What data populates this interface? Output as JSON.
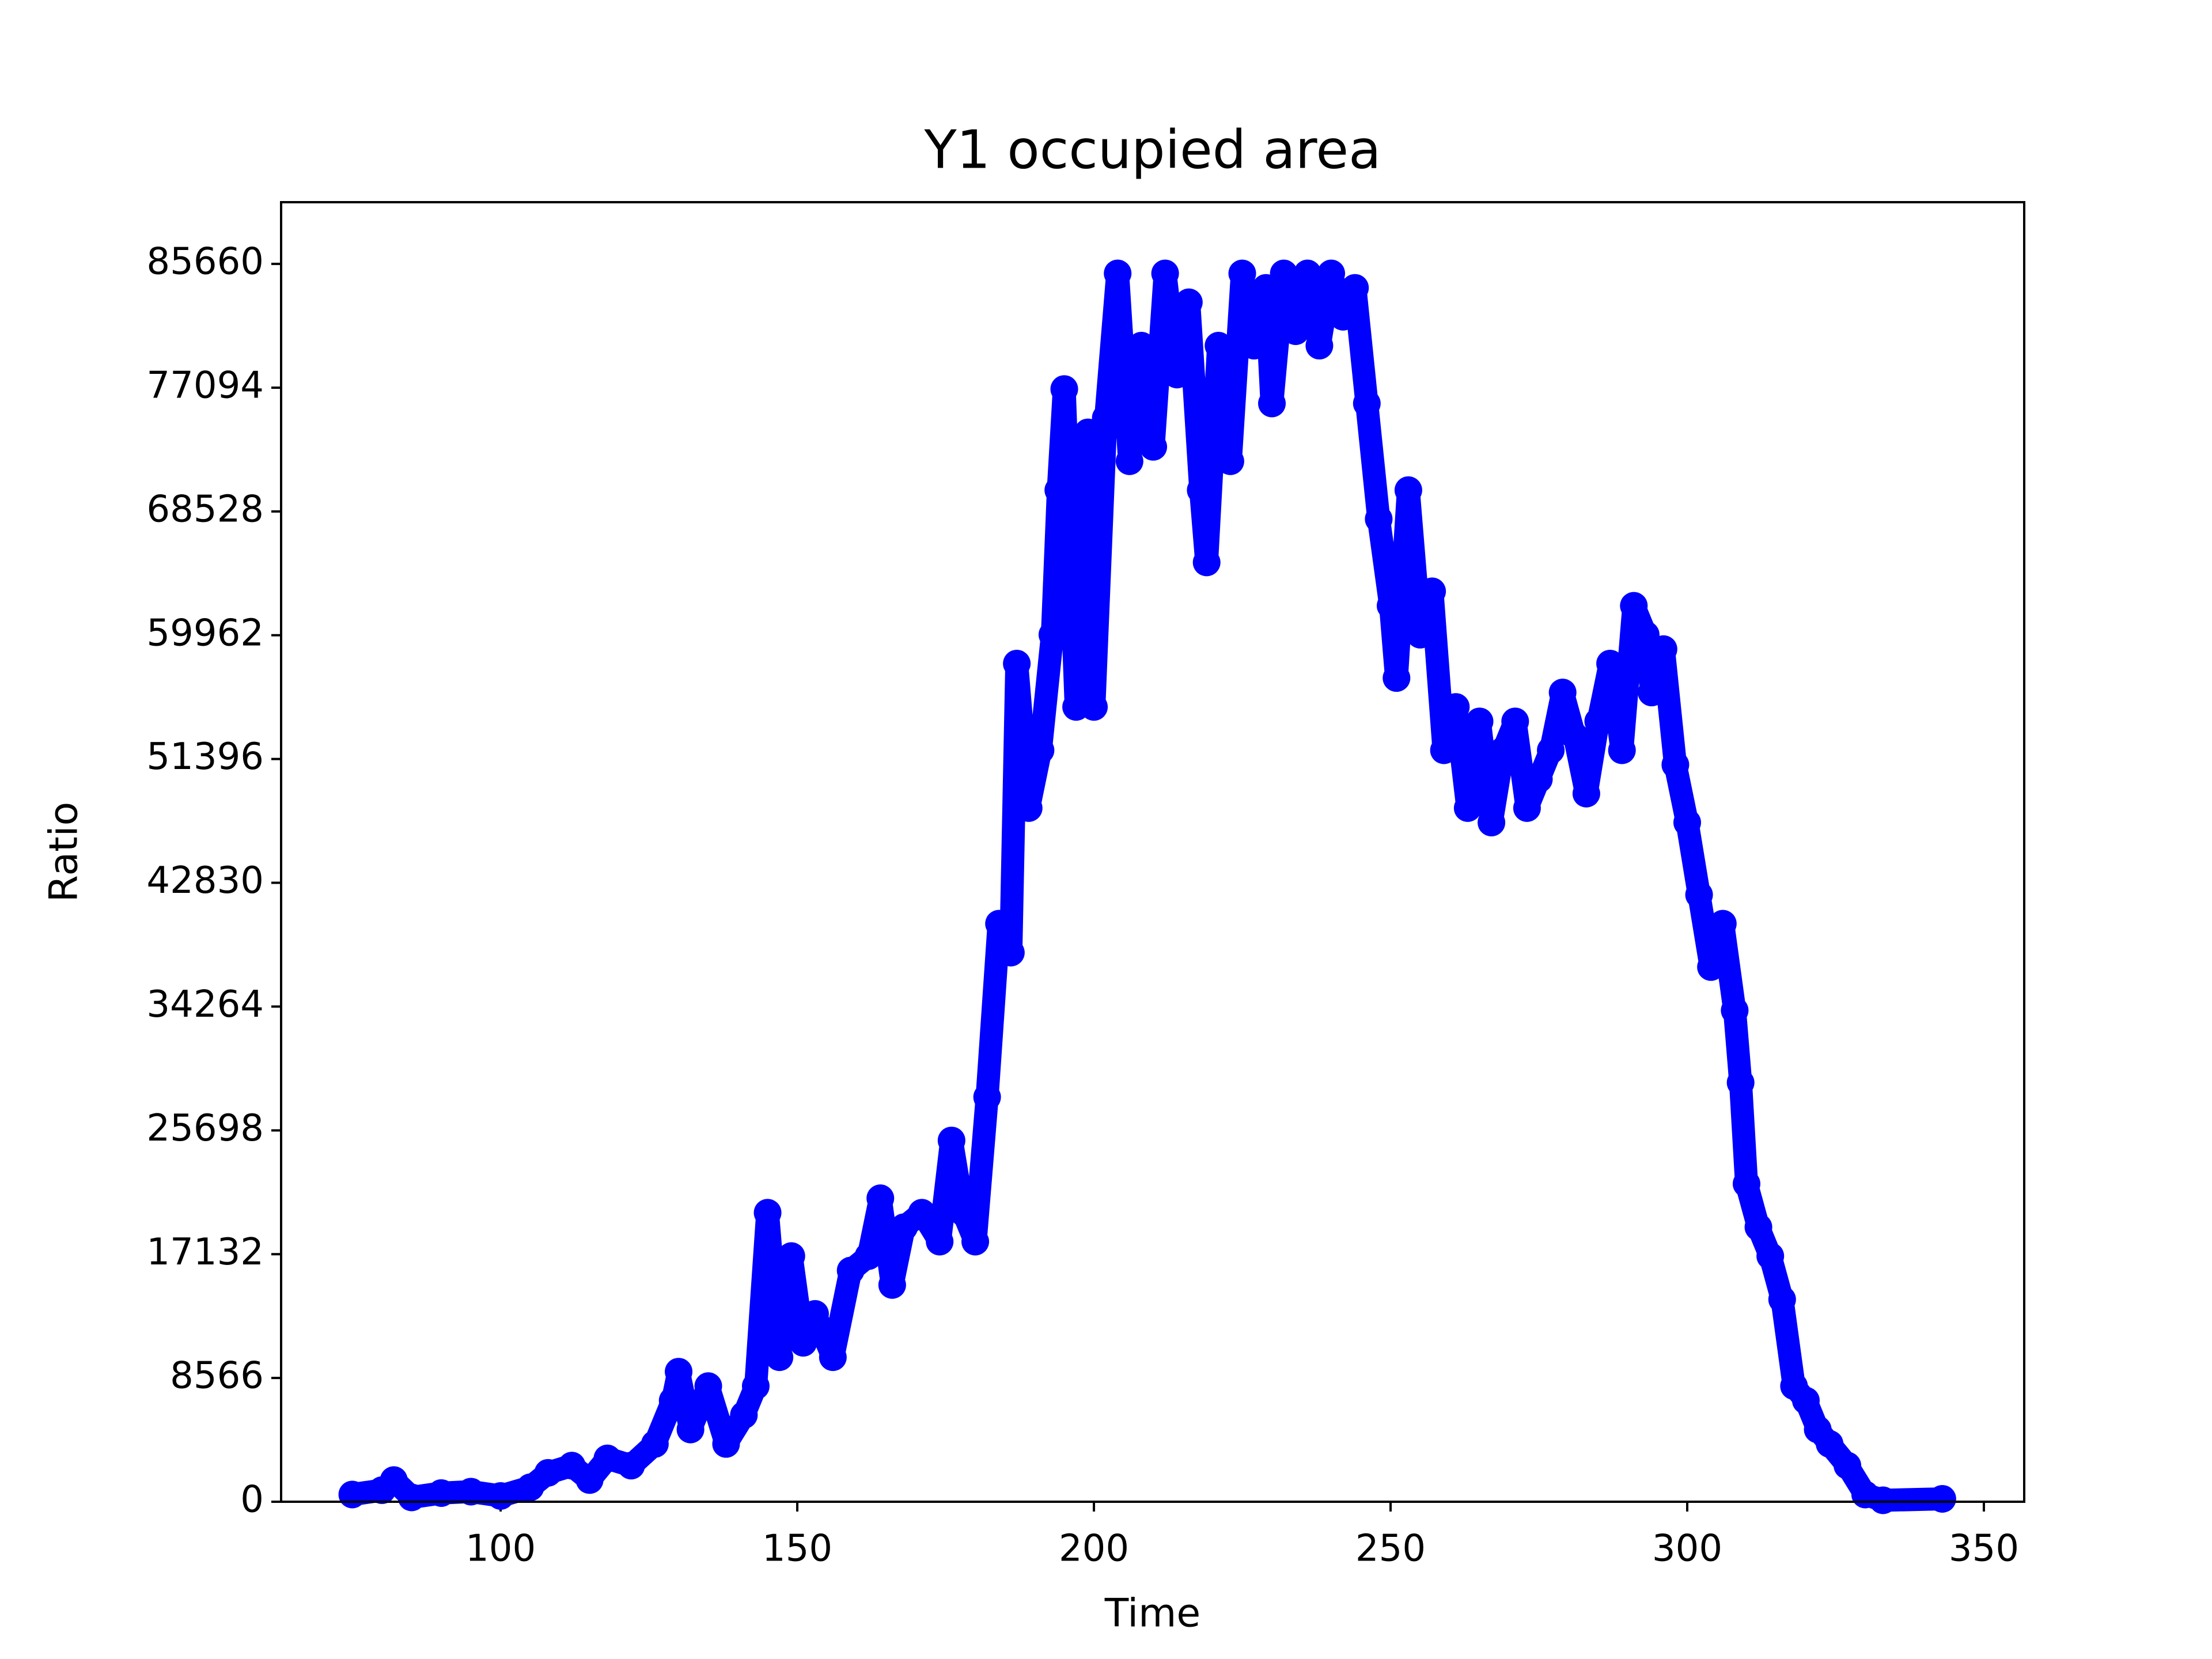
{
  "chart_data": {
    "type": "line",
    "title": "Y1 occupied area",
    "x_label": "Time",
    "y_label": "Ratio",
    "color": "#0000ff",
    "x": [
      75,
      80,
      82,
      85,
      90,
      95,
      100,
      105,
      108,
      112,
      115,
      118,
      122,
      126,
      129,
      130,
      132,
      135,
      138,
      141,
      143,
      145,
      147,
      149,
      151,
      153,
      156,
      159,
      162,
      164,
      166,
      168,
      171,
      174,
      176,
      178,
      180,
      182,
      184,
      186,
      187,
      189,
      191,
      193,
      194,
      195,
      197,
      199,
      200,
      202,
      204,
      206,
      208,
      210,
      212,
      214,
      216,
      218,
      219,
      221,
      223,
      225,
      227,
      229,
      230,
      232,
      234,
      236,
      238,
      240,
      242,
      244,
      246,
      248,
      250,
      251,
      253,
      255,
      257,
      259,
      261,
      263,
      265,
      267,
      269,
      271,
      273,
      275,
      277,
      279,
      281,
      283,
      285,
      287,
      289,
      291,
      293,
      294,
      296,
      298,
      300,
      302,
      304,
      306,
      308,
      309,
      310,
      312,
      314,
      316,
      318,
      320,
      322,
      324,
      327,
      330,
      333,
      343
    ],
    "values": [
      500,
      800,
      1500,
      300,
      600,
      700,
      400,
      1000,
      2000,
      2500,
      1500,
      3000,
      2500,
      4000,
      7000,
      9000,
      5000,
      8000,
      4000,
      6000,
      8000,
      20000,
      10000,
      17000,
      11000,
      13000,
      10000,
      16000,
      17000,
      21000,
      15000,
      19000,
      20000,
      18000,
      25000,
      20000,
      18000,
      28000,
      40000,
      38000,
      58000,
      48000,
      52000,
      60000,
      70000,
      77000,
      55000,
      74000,
      55000,
      75000,
      85000,
      72000,
      80000,
      73000,
      85000,
      78000,
      83000,
      70000,
      65000,
      80000,
      72000,
      85000,
      80000,
      84000,
      76000,
      85000,
      81000,
      85000,
      80000,
      85000,
      82000,
      84000,
      76000,
      68000,
      62000,
      57000,
      70000,
      60000,
      63000,
      52000,
      55000,
      48000,
      54000,
      47000,
      52000,
      54000,
      48000,
      50000,
      52000,
      56000,
      53000,
      49000,
      54000,
      58000,
      52000,
      62000,
      60000,
      56000,
      59000,
      51000,
      47000,
      42000,
      37000,
      40000,
      34000,
      29000,
      22000,
      19000,
      17000,
      14000,
      8000,
      7000,
      5000,
      4000,
      2500,
      500,
      100,
      200
    ],
    "xlim": [
      63,
      356.8
    ],
    "ylim": [
      0,
      89928
    ],
    "xticks": [
      100,
      150,
      200,
      250,
      300,
      350
    ],
    "yticks": [
      0,
      8566,
      17132,
      25698,
      34264,
      42830,
      51396,
      59962,
      68528,
      77094,
      85660
    ]
  }
}
